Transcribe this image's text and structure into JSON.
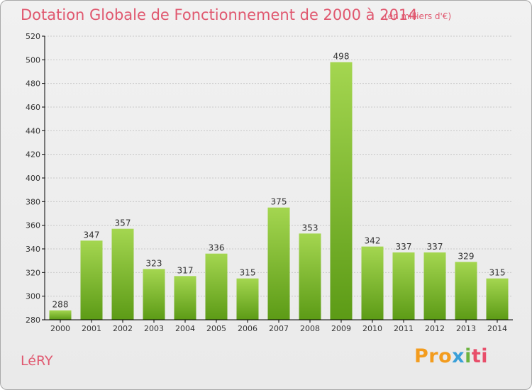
{
  "title": "Dotation Globale de Fonctionnement de 2000 à 2014",
  "unit_note": "(en milliers d'€)",
  "commune": "LéRY",
  "logo": {
    "text": "Proxiti",
    "parts": [
      "Pro",
      "x",
      "i",
      "ti"
    ]
  },
  "colors": {
    "title": "#e0586f",
    "bar_light": "#9fd14a",
    "bar_dark": "#5e9e18",
    "grid": "#c8c8c8",
    "axis": "#000000"
  },
  "chart_data": {
    "type": "bar",
    "title": "Dotation Globale de Fonctionnement de 2000 à 2014",
    "subtitle": "(en milliers d'€)",
    "xlabel": "",
    "ylabel": "",
    "categories": [
      "2000",
      "2001",
      "2002",
      "2003",
      "2004",
      "2005",
      "2006",
      "2007",
      "2008",
      "2009",
      "2010",
      "2011",
      "2012",
      "2013",
      "2014"
    ],
    "values": [
      288,
      347,
      357,
      323,
      317,
      336,
      315,
      375,
      353,
      498,
      342,
      337,
      337,
      329,
      315
    ],
    "ylim": [
      280,
      520
    ],
    "yticks": [
      280,
      300,
      320,
      340,
      360,
      380,
      400,
      420,
      440,
      460,
      480,
      500,
      520
    ],
    "grid": "horizontal dashed",
    "legend": "none"
  }
}
